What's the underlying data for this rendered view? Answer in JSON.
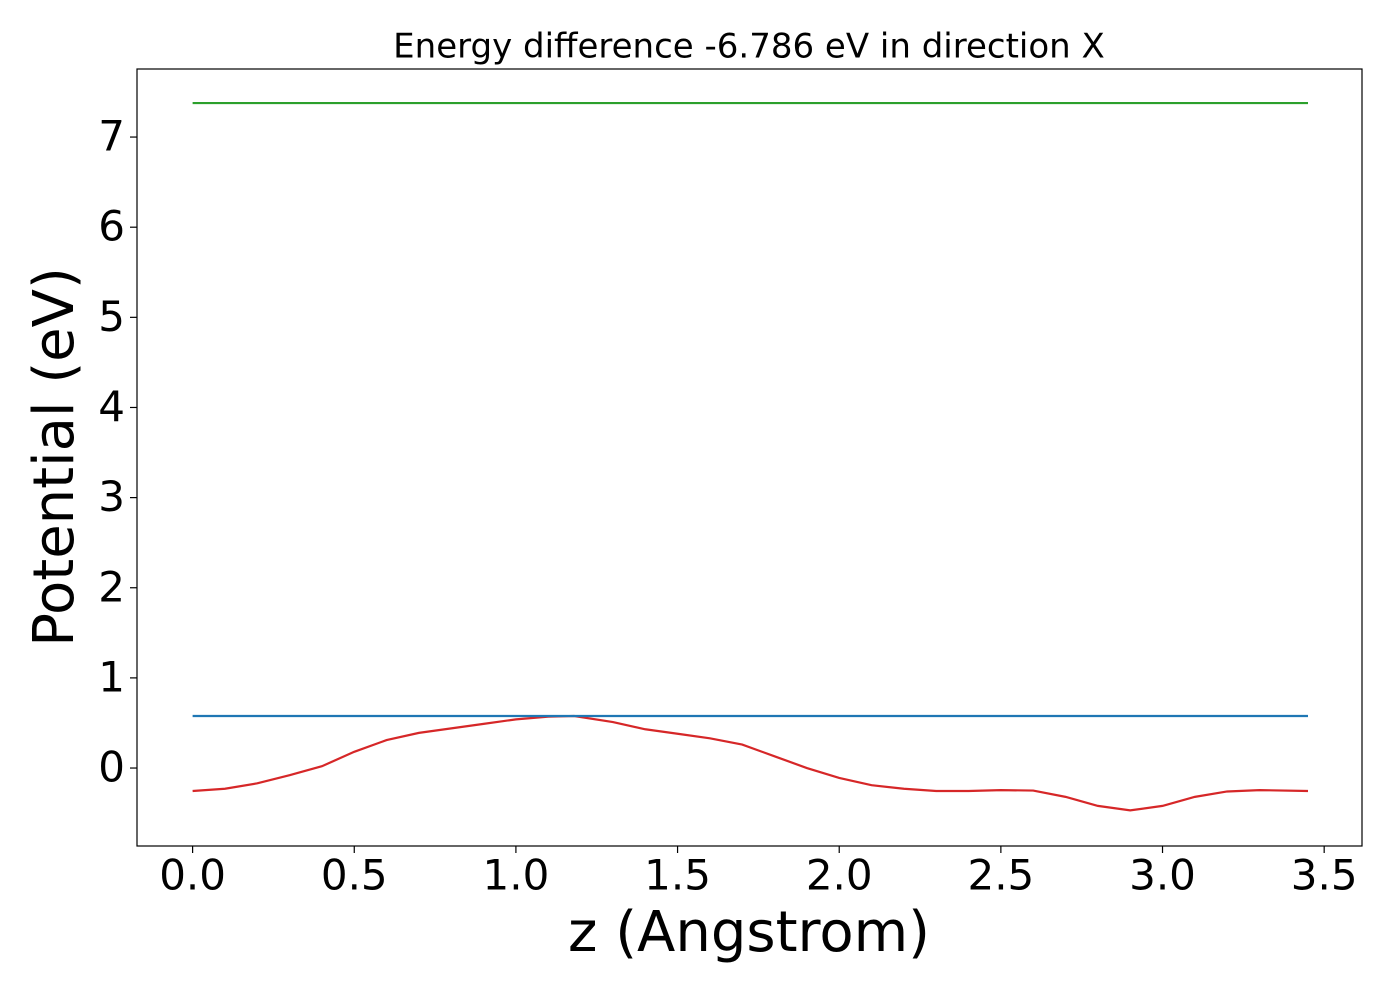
{
  "chart_data": {
    "type": "line",
    "title": "Energy difference -6.786 eV in direction X",
    "xlabel": "z (Angstrom)",
    "ylabel": "Potential (eV)",
    "xlim": [
      -0.172,
      3.617
    ],
    "ylim": [
      -0.865,
      7.755
    ],
    "xticks": [
      {
        "value": 0,
        "label": "0.0"
      },
      {
        "value": 0.5,
        "label": "0.5"
      },
      {
        "value": 1,
        "label": "1.0"
      },
      {
        "value": 1.5,
        "label": "1.5"
      },
      {
        "value": 2,
        "label": "2.0"
      },
      {
        "value": 2.5,
        "label": "2.5"
      },
      {
        "value": 3,
        "label": "3.0"
      },
      {
        "value": 3.5,
        "label": "3.5"
      }
    ],
    "yticks": [
      0,
      1,
      2,
      3,
      4,
      5,
      6,
      7
    ],
    "grid": false,
    "series": [
      {
        "color": "#d62728",
        "x": [
          0,
          0.1,
          0.2,
          0.3,
          0.4,
          0.5,
          0.6,
          0.7,
          0.8,
          0.9,
          1.0,
          1.1,
          1.18,
          1.3,
          1.4,
          1.5,
          1.6,
          1.7,
          1.8,
          1.9,
          2.0,
          2.1,
          2.2,
          2.3,
          2.4,
          2.5,
          2.6,
          2.7,
          2.8,
          2.9,
          3.0,
          3.1,
          3.2,
          3.3,
          3.45
        ],
        "values": [
          -0.255,
          -0.23,
          -0.17,
          -0.08,
          0.02,
          0.18,
          0.31,
          0.39,
          0.44,
          0.49,
          0.54,
          0.57,
          0.577,
          0.51,
          0.43,
          0.38,
          0.33,
          0.26,
          0.13,
          0.0,
          -0.11,
          -0.19,
          -0.23,
          -0.255,
          -0.255,
          -0.245,
          -0.25,
          -0.32,
          -0.42,
          -0.47,
          -0.42,
          -0.32,
          -0.26,
          -0.245,
          -0.255
        ]
      },
      {
        "color": "#1f77b4",
        "x": [
          0,
          3.45
        ],
        "values": [
          0.577,
          0.577
        ]
      },
      {
        "color": "#2ca02c",
        "x": [
          0,
          3.45
        ],
        "values": [
          7.377,
          7.377
        ]
      }
    ]
  }
}
